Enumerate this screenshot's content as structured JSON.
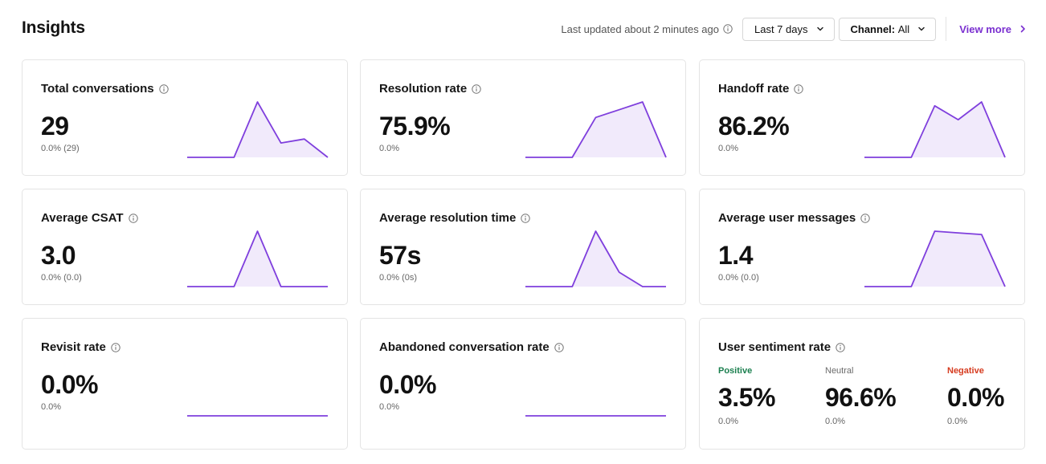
{
  "header": {
    "title": "Insights",
    "updated_text": "Last updated about 2 minutes ago",
    "date_filter": "Last 7 days",
    "channel_label": "Channel:",
    "channel_value": "All",
    "view_more": "View more"
  },
  "colors": {
    "accent": "#7b2fd6",
    "spark_line": "#7f3fdd",
    "spark_fill": "#f1eafb",
    "positive": "#1a7f4e",
    "neutral": "#6b6b6b",
    "negative": "#d63b1f"
  },
  "cards": [
    {
      "title": "Total conversations",
      "value": "29",
      "sub": "0.0% (29)",
      "spark": [
        0,
        0,
        0,
        1.0,
        0.26,
        0.33,
        0
      ]
    },
    {
      "title": "Resolution rate",
      "value": "75.9%",
      "sub": "0.0%",
      "spark": [
        0,
        0,
        0,
        0.72,
        0.86,
        1.0,
        0
      ]
    },
    {
      "title": "Handoff rate",
      "value": "86.2%",
      "sub": "0.0%",
      "spark": [
        0,
        0,
        0,
        0.93,
        0.68,
        1.0,
        0
      ]
    },
    {
      "title": "Average CSAT",
      "value": "3.0",
      "sub": "0.0% (0.0)",
      "spark": [
        0,
        0,
        0,
        1.0,
        0,
        0,
        0
      ]
    },
    {
      "title": "Average resolution time",
      "value": "57s",
      "sub": "0.0% (0s)",
      "spark": [
        0,
        0,
        0,
        1.0,
        0.26,
        0,
        0
      ]
    },
    {
      "title": "Average user messages",
      "value": "1.4",
      "sub": "0.0% (0.0)",
      "spark": [
        0,
        0,
        0,
        1.0,
        0.97,
        0.94,
        0
      ]
    },
    {
      "title": "Revisit rate",
      "value": "0.0%",
      "sub": "0.0%",
      "spark": [
        0,
        0,
        0,
        0,
        0,
        0,
        0
      ]
    },
    {
      "title": "Abandoned conversation rate",
      "value": "0.0%",
      "sub": "0.0%",
      "spark": [
        0,
        0,
        0,
        0,
        0,
        0,
        0
      ]
    }
  ],
  "sentiment": {
    "title": "User sentiment rate",
    "positive": {
      "label": "Positive",
      "value": "3.5%",
      "sub": "0.0%"
    },
    "neutral": {
      "label": "Neutral",
      "value": "96.6%",
      "sub": "0.0%"
    },
    "negative": {
      "label": "Negative",
      "value": "0.0%",
      "sub": "0.0%"
    }
  }
}
